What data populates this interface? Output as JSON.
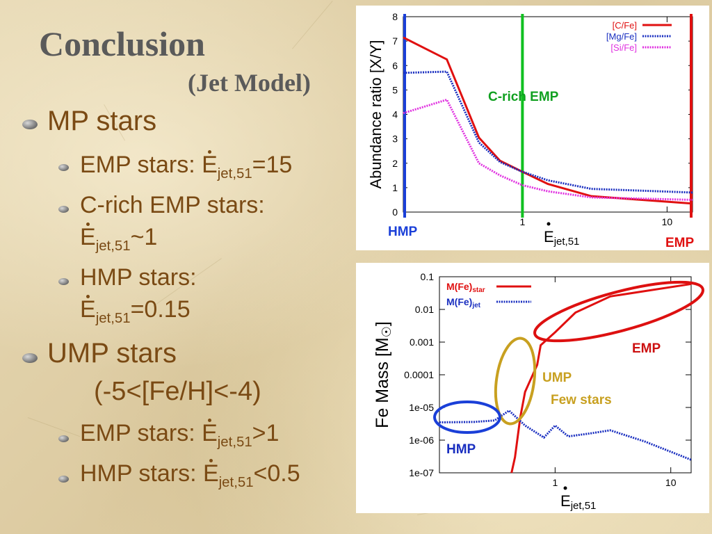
{
  "slide": {
    "title": "Conclusion",
    "subtitle": "(Jet Model)",
    "bullets": {
      "mp": "MP stars",
      "emp_label": "EMP stars: ",
      "emp_eq": "=15",
      "crich_label": "C-rich EMP stars:",
      "crich_eq": "~1",
      "hmp_label": "HMP stars:",
      "hmp_eq": "=0.15",
      "ump": "UMP stars",
      "ump_range": "(-5<[Fe/H]<-4)",
      "ump_emp_label": "EMP stars: ",
      "ump_emp_eq": ">1",
      "ump_hmp_label": "HMP stars: ",
      "ump_hmp_eq": "<0.5",
      "e_symbol": "E",
      "jet_sub": "jet,51"
    }
  },
  "chart_data": [
    {
      "type": "line",
      "ylabel": "Abundance ratio [X/Y]",
      "xlabel_main": "E",
      "xlabel_sub": "jet,51",
      "x_scale": "log",
      "xlim": [
        0.15,
        15
      ],
      "ylim": [
        0,
        8
      ],
      "y_ticks": [
        "0",
        "1",
        "2",
        "3",
        "4",
        "5",
        "6",
        "7",
        "8"
      ],
      "x_ticks": [
        {
          "value": 1,
          "label": "1"
        },
        {
          "value": 10,
          "label": "10"
        }
      ],
      "legend_position": "top-right",
      "series": [
        {
          "name": "[C/Fe]",
          "color": "#e01010",
          "style": "solid",
          "x": [
            0.15,
            0.3,
            0.5,
            0.7,
            1.0,
            1.5,
            3.0,
            15
          ],
          "y": [
            7.15,
            6.25,
            3.05,
            2.1,
            1.65,
            1.15,
            0.65,
            0.35
          ]
        },
        {
          "name": "[Mg/Fe]",
          "color": "#1a2fc0",
          "style": "dotted",
          "x": [
            0.15,
            0.3,
            0.5,
            0.7,
            1.0,
            1.5,
            3.0,
            15
          ],
          "y": [
            5.7,
            5.75,
            2.85,
            2.05,
            1.65,
            1.3,
            0.95,
            0.8
          ]
        },
        {
          "name": "[Si/Fe]",
          "color": "#e030e0",
          "style": "dotted",
          "x": [
            0.15,
            0.3,
            0.5,
            0.7,
            1.0,
            1.5,
            3.0,
            15
          ],
          "y": [
            4.05,
            4.6,
            2.0,
            1.5,
            1.1,
            0.85,
            0.6,
            0.5
          ]
        }
      ],
      "vertical_lines": [
        {
          "x": 0.15,
          "color": "#1a3fd8",
          "label": "HMP"
        },
        {
          "x": 1.0,
          "color": "#10c020",
          "label": "C-rich EMP"
        },
        {
          "x": 15,
          "color": "#e01010",
          "label": "EMP"
        }
      ]
    },
    {
      "type": "line",
      "ylabel": "Fe Mass [M",
      "ylabel_sun": "☉",
      "ylabel_close": "]",
      "xlabel_main": "E",
      "xlabel_sub": "jet,51",
      "x_scale": "log",
      "y_scale": "log",
      "xlim": [
        0.1,
        15
      ],
      "ylim": [
        1e-07,
        0.1
      ],
      "y_ticks": [
        {
          "value": 0.1,
          "label": "0.1"
        },
        {
          "value": 0.01,
          "label": "0.01"
        },
        {
          "value": 0.001,
          "label": "0.001"
        },
        {
          "value": 0.0001,
          "label": "0.0001"
        },
        {
          "value": 1e-05,
          "label": "1e-05"
        },
        {
          "value": 1e-06,
          "label": "1e-06"
        },
        {
          "value": 1e-07,
          "label": "1e-07"
        }
      ],
      "x_ticks": [
        {
          "value": 1,
          "label": "1"
        },
        {
          "value": 10,
          "label": "10"
        }
      ],
      "legend_position": "top-left",
      "series": [
        {
          "name": "M(Fe)",
          "name_sub": "star",
          "color": "#e01010",
          "style": "solid",
          "x": [
            0.42,
            0.45,
            0.5,
            0.55,
            0.7,
            0.75,
            1.0,
            1.5,
            3.0,
            15
          ],
          "y": [
            1e-07,
            3e-07,
            5e-06,
            3e-05,
            0.0002,
            0.0008,
            0.002,
            0.008,
            0.025,
            0.06
          ]
        },
        {
          "name": "M(Fe)",
          "name_sub": "jet",
          "color": "#1a2fc0",
          "style": "dotted",
          "x": [
            0.1,
            0.2,
            0.3,
            0.4,
            0.55,
            0.8,
            1.0,
            1.3,
            2.0,
            3.0,
            6.0,
            15
          ],
          "y": [
            3.5e-06,
            3.6e-06,
            4e-06,
            8e-06,
            2.8e-06,
            1.2e-06,
            2.8e-06,
            1.3e-06,
            1.6e-06,
            2e-06,
            9e-07,
            2.5e-07
          ]
        }
      ],
      "annotations": [
        {
          "label": "EMP",
          "color": "#cc1010"
        },
        {
          "label": "UMP",
          "color": "#c8a020"
        },
        {
          "label": "Few stars",
          "color": "#c8a020"
        },
        {
          "label": "HMP",
          "color": "#1a2fc0"
        }
      ]
    }
  ]
}
